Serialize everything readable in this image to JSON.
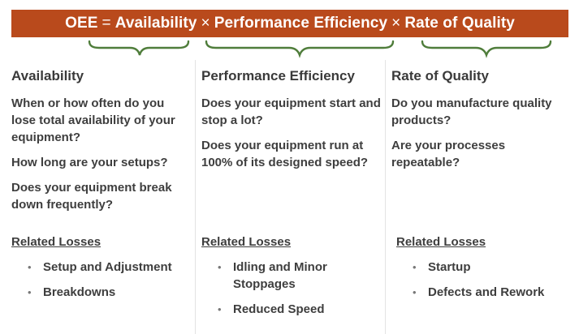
{
  "banner": {
    "oee": "OEE",
    "equals": "=",
    "term1": "Availability",
    "times1": "×",
    "term2": "Performance Efficiency",
    "times2": "×",
    "term3": "Rate of Quality"
  },
  "colors": {
    "banner": "#b94a1c",
    "brace": "#4f7d3b",
    "text": "#3a3a3a"
  },
  "columns": [
    {
      "heading": "Availability",
      "questions": [
        "When or how often do you lose total availability of your equipment?",
        "How long are your setups?",
        "Does your equipment break down frequently?"
      ],
      "losses_title": "Related Losses",
      "losses": [
        "Setup and Adjustment",
        "Breakdowns"
      ]
    },
    {
      "heading": "Performance Efficiency",
      "questions": [
        "Does your equipment start and stop a lot?",
        "Does your equipment run at 100% of its designed speed?"
      ],
      "losses_title": "Related Losses",
      "losses": [
        "Idling and Minor Stoppages",
        "Reduced Speed"
      ]
    },
    {
      "heading": "Rate of Quality",
      "questions": [
        "Do you manufacture quality products?",
        "Are your processes repeatable?"
      ],
      "losses_title": "Related Losses",
      "losses": [
        "Startup",
        "Defects and Rework"
      ]
    }
  ],
  "bullet": "•"
}
